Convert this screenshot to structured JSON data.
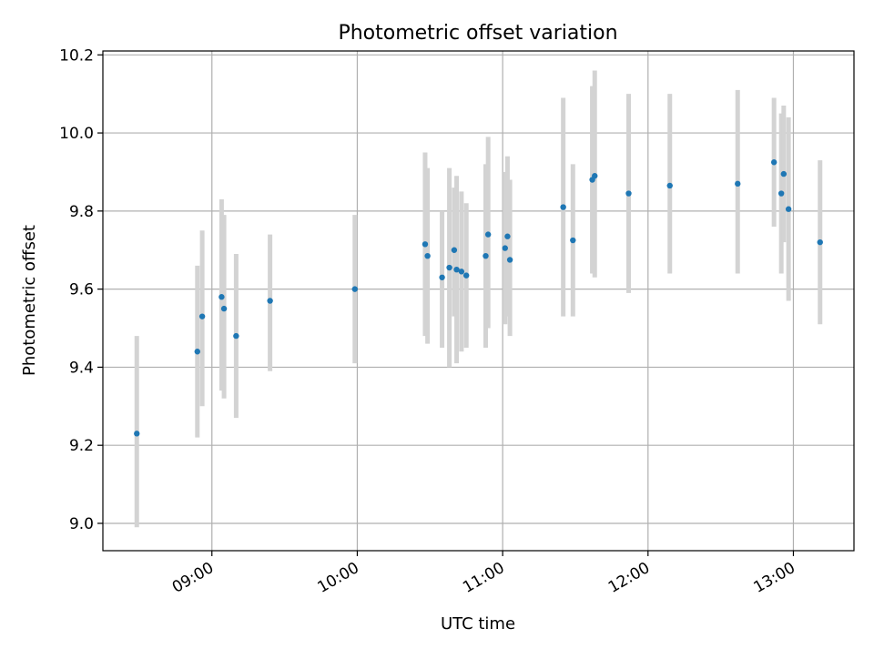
{
  "chart_data": {
    "type": "scatter",
    "title": "Photometric offset variation",
    "xlabel": "UTC time",
    "ylabel": "Photometric offset",
    "x_axis_type": "time",
    "xlim": [
      "08:15",
      "13:25"
    ],
    "ylim": [
      8.93,
      10.21
    ],
    "x_ticks": [
      "09:00",
      "10:00",
      "11:00",
      "12:00",
      "13:00"
    ],
    "y_ticks": [
      "9.0",
      "9.2",
      "9.4",
      "9.6",
      "9.8",
      "10.0",
      "10.2"
    ],
    "grid": true,
    "legend": "none",
    "colors": {
      "point": "#1f77b4",
      "errorbar": "#d3d3d3",
      "grid": "#b0b0b0"
    },
    "series": [
      {
        "points": [
          {
            "x": "08:29",
            "y": 9.23,
            "low": 8.99,
            "high": 9.48
          },
          {
            "x": "08:54",
            "y": 9.44,
            "low": 9.22,
            "high": 9.66
          },
          {
            "x": "08:56",
            "y": 9.53,
            "low": 9.3,
            "high": 9.75
          },
          {
            "x": "09:04",
            "y": 9.58,
            "low": 9.34,
            "high": 9.83
          },
          {
            "x": "09:05",
            "y": 9.55,
            "low": 9.32,
            "high": 9.79
          },
          {
            "x": "09:10",
            "y": 9.48,
            "low": 9.27,
            "high": 9.69
          },
          {
            "x": "09:24",
            "y": 9.57,
            "low": 9.39,
            "high": 9.74
          },
          {
            "x": "09:59",
            "y": 9.6,
            "low": 9.41,
            "high": 9.79
          },
          {
            "x": "10:28",
            "y": 9.715,
            "low": 9.48,
            "high": 9.95
          },
          {
            "x": "10:29",
            "y": 9.685,
            "low": 9.46,
            "high": 9.91
          },
          {
            "x": "10:35",
            "y": 9.63,
            "low": 9.45,
            "high": 9.8
          },
          {
            "x": "10:38",
            "y": 9.655,
            "low": 9.4,
            "high": 9.91
          },
          {
            "x": "10:40",
            "y": 9.7,
            "low": 9.53,
            "high": 9.86
          },
          {
            "x": "10:41",
            "y": 9.65,
            "low": 9.41,
            "high": 9.89
          },
          {
            "x": "10:43",
            "y": 9.645,
            "low": 9.44,
            "high": 9.85
          },
          {
            "x": "10:45",
            "y": 9.635,
            "low": 9.45,
            "high": 9.82
          },
          {
            "x": "10:53",
            "y": 9.685,
            "low": 9.45,
            "high": 9.92
          },
          {
            "x": "10:54",
            "y": 9.74,
            "low": 9.5,
            "high": 9.99
          },
          {
            "x": "11:01",
            "y": 9.705,
            "low": 9.51,
            "high": 9.9
          },
          {
            "x": "11:02",
            "y": 9.735,
            "low": 9.53,
            "high": 9.94
          },
          {
            "x": "11:03",
            "y": 9.675,
            "low": 9.48,
            "high": 9.88
          },
          {
            "x": "11:25",
            "y": 9.81,
            "low": 9.53,
            "high": 10.09
          },
          {
            "x": "11:29",
            "y": 9.725,
            "low": 9.53,
            "high": 9.92
          },
          {
            "x": "11:37",
            "y": 9.88,
            "low": 9.64,
            "high": 10.12
          },
          {
            "x": "11:38",
            "y": 9.89,
            "low": 9.63,
            "high": 10.16
          },
          {
            "x": "11:52",
            "y": 9.845,
            "low": 9.59,
            "high": 10.1
          },
          {
            "x": "12:09",
            "y": 9.865,
            "low": 9.64,
            "high": 10.1
          },
          {
            "x": "12:37",
            "y": 9.87,
            "low": 9.64,
            "high": 10.11
          },
          {
            "x": "12:52",
            "y": 9.925,
            "low": 9.76,
            "high": 10.09
          },
          {
            "x": "12:55",
            "y": 9.845,
            "low": 9.64,
            "high": 10.05
          },
          {
            "x": "12:56",
            "y": 9.895,
            "low": 9.72,
            "high": 10.07
          },
          {
            "x": "12:58",
            "y": 9.805,
            "low": 9.57,
            "high": 10.04
          },
          {
            "x": "13:11",
            "y": 9.72,
            "low": 9.51,
            "high": 9.93
          }
        ]
      }
    ]
  }
}
